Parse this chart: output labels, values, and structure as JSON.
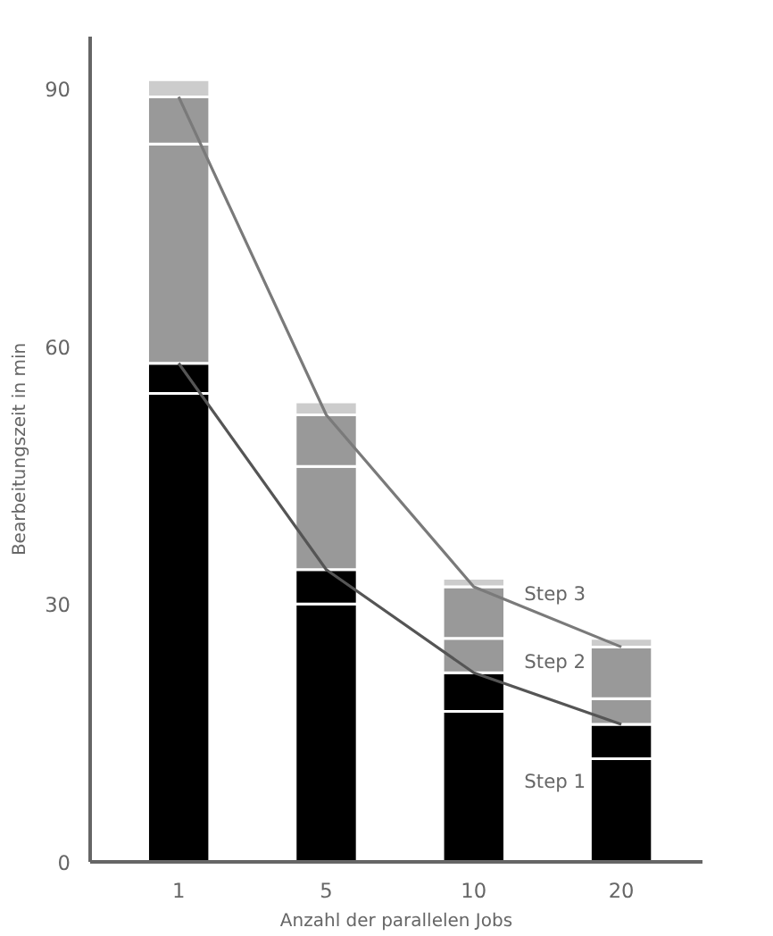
{
  "chart_data": {
    "type": "bar",
    "stacked": true,
    "xlabel": "Anzahl der parallelen Jobs",
    "ylabel": "Bearbeitungszeit in min",
    "categories": [
      "1",
      "5",
      "10",
      "20"
    ],
    "ylim": [
      0,
      96
    ],
    "yticks": [
      0,
      30,
      60,
      90
    ],
    "grid": false,
    "series": [
      {
        "color": "#000000",
        "values": [
          54.5,
          30,
          17.5,
          12
        ]
      },
      {
        "color": "#000000",
        "values": [
          3.5,
          4,
          4.5,
          4
        ]
      },
      {
        "color": "#999999",
        "values": [
          25.5,
          12,
          4,
          3
        ]
      },
      {
        "color": "#999999",
        "values": [
          5.5,
          6,
          6,
          6
        ]
      },
      {
        "color": "#cccccc",
        "values": [
          2,
          1.5,
          1,
          1
        ]
      },
      {
        "type": "line",
        "color": "#555555",
        "values": [
          58,
          34,
          22,
          16
        ]
      },
      {
        "type": "line",
        "color": "#7a7a7a",
        "values": [
          89,
          52,
          32,
          25
        ]
      }
    ],
    "annotations": [
      "Step 3",
      "Step 2",
      "Step 1"
    ]
  }
}
